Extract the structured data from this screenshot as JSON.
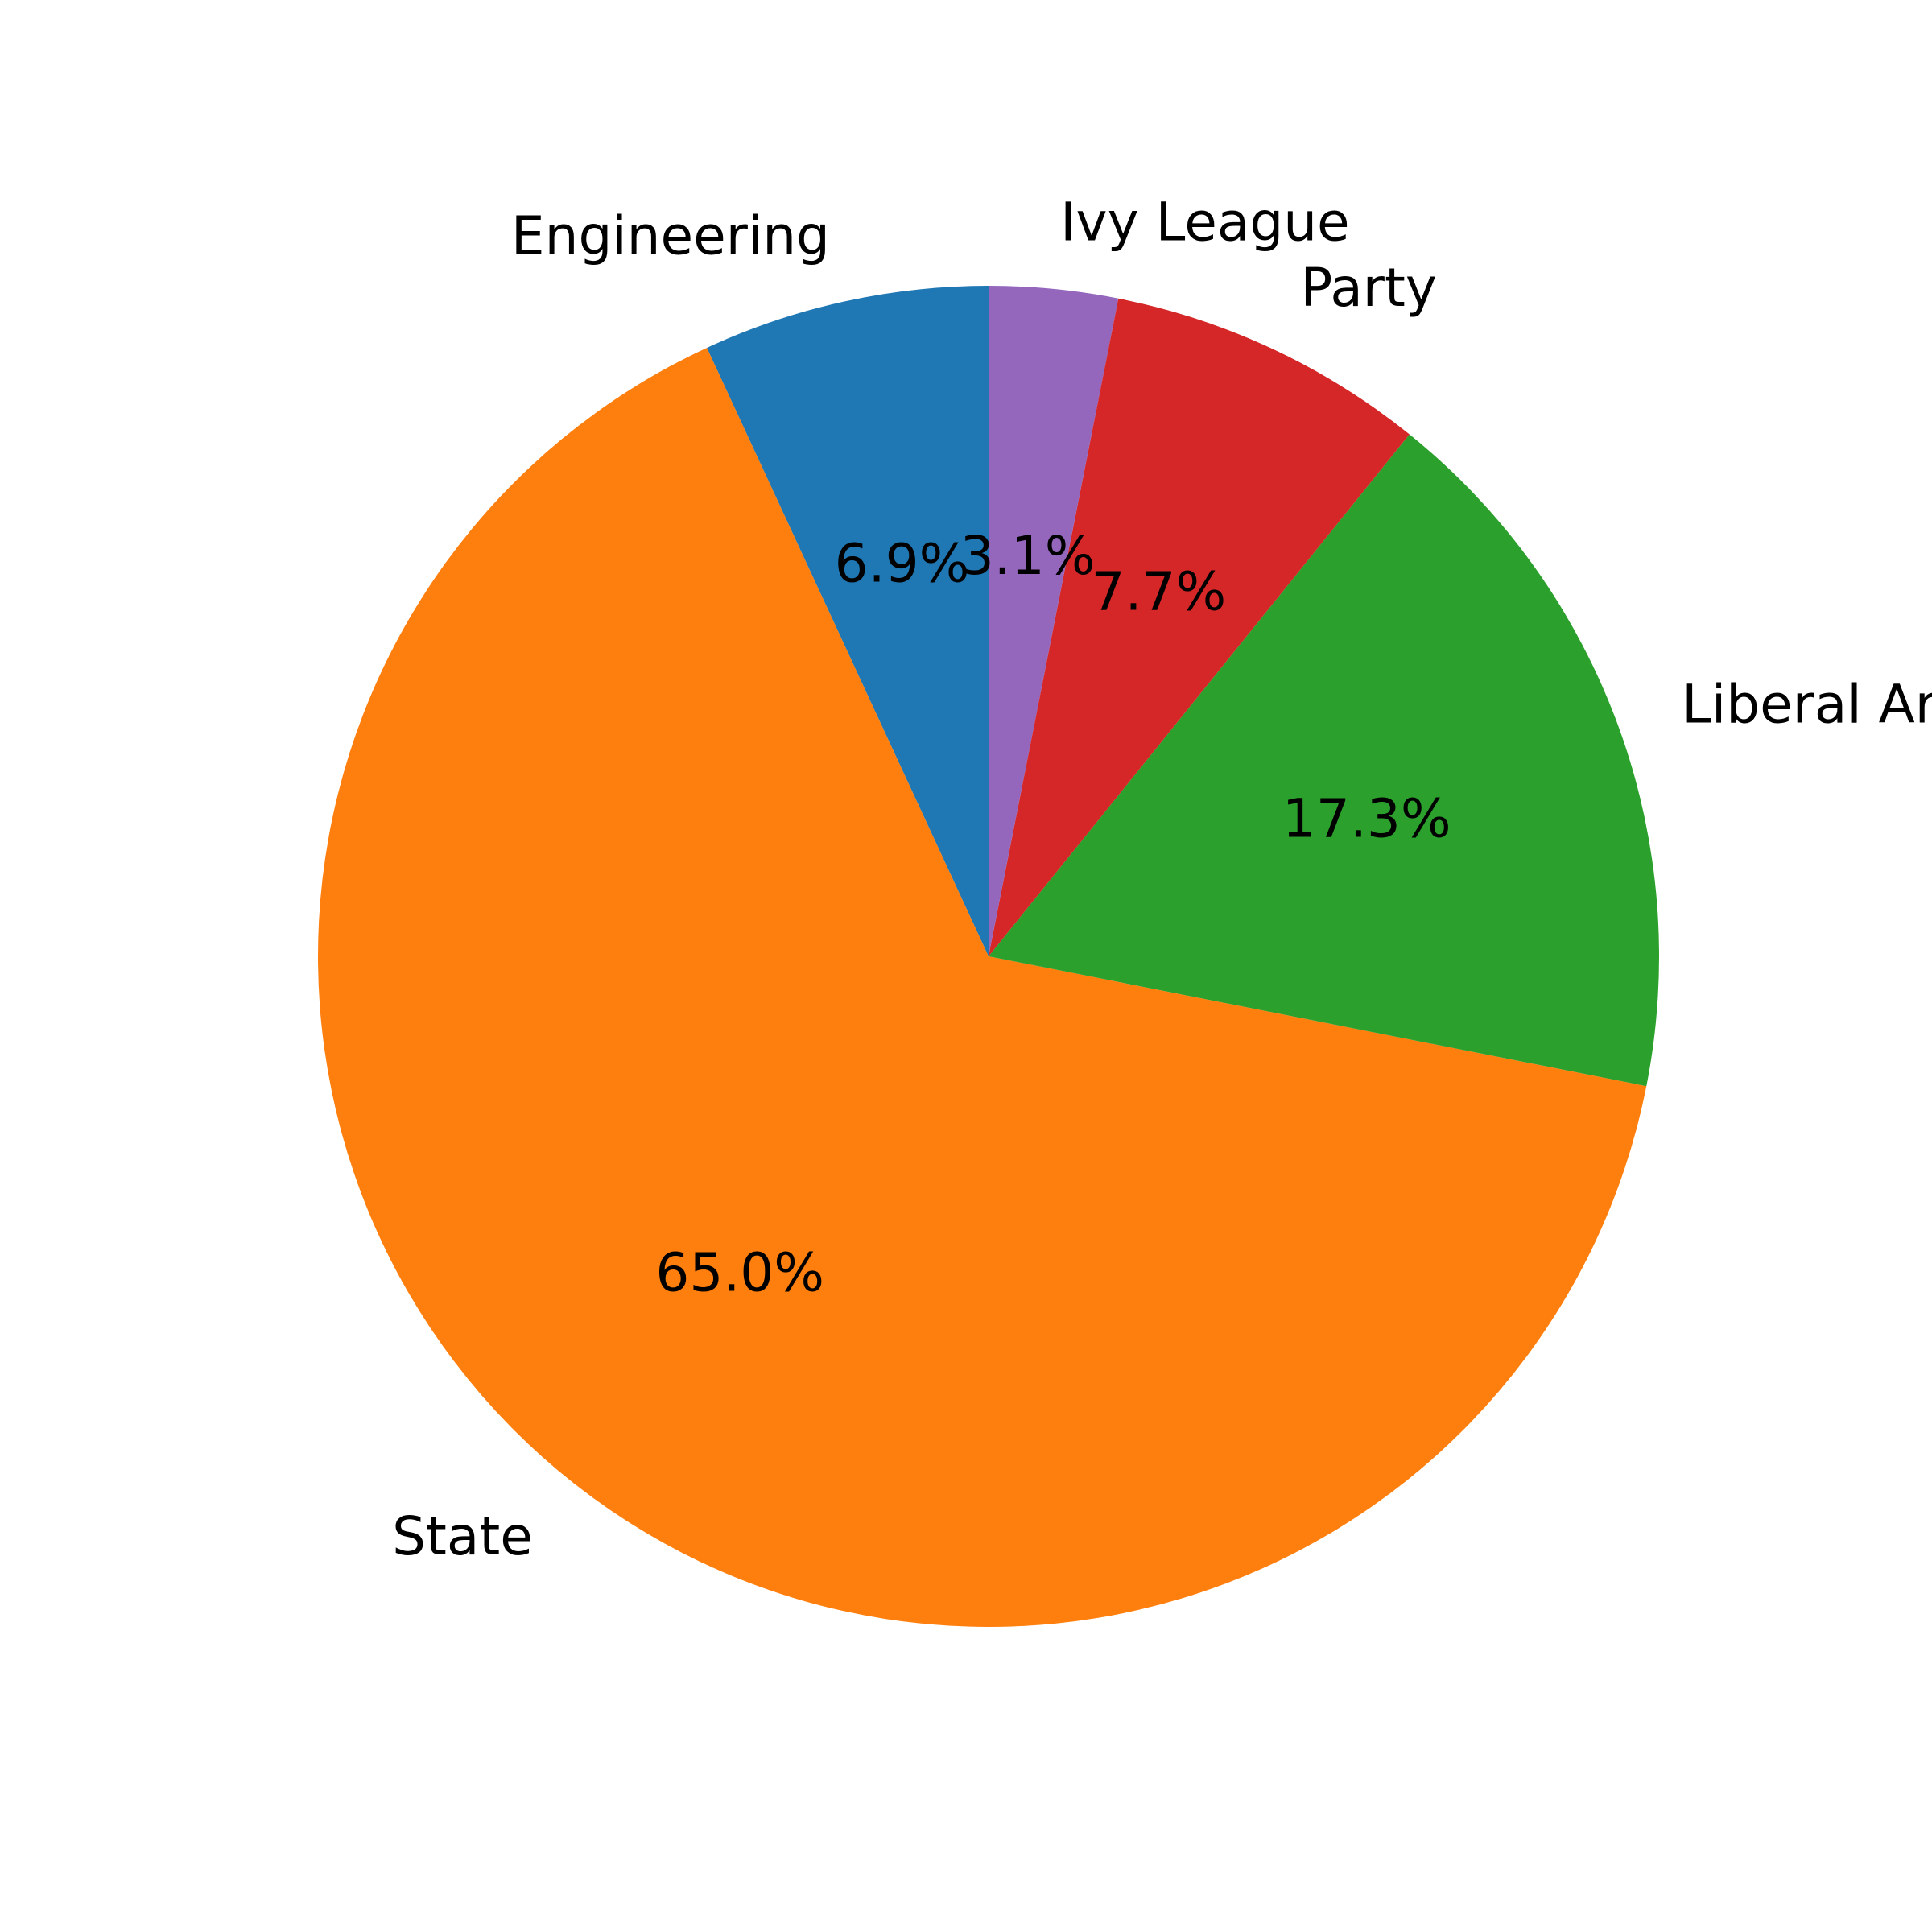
{
  "chart_data": {
    "type": "pie",
    "start_angle_deg": 90,
    "direction": "counterclockwise",
    "slices": [
      {
        "label": "Engineering",
        "percent": 6.9,
        "pct_label": "6.9%",
        "color": "#1f77b4"
      },
      {
        "label": "State",
        "percent": 65.0,
        "pct_label": "65.0%",
        "color": "#ff7f0e"
      },
      {
        "label": "Liberal Arts",
        "percent": 17.3,
        "pct_label": "17.3%",
        "color": "#2ca02c"
      },
      {
        "label": "Party",
        "percent": 7.7,
        "pct_label": "7.7%",
        "color": "#d62728"
      },
      {
        "label": "Ivy League",
        "percent": 3.1,
        "pct_label": "3.1%",
        "color": "#9467bd"
      }
    ]
  }
}
